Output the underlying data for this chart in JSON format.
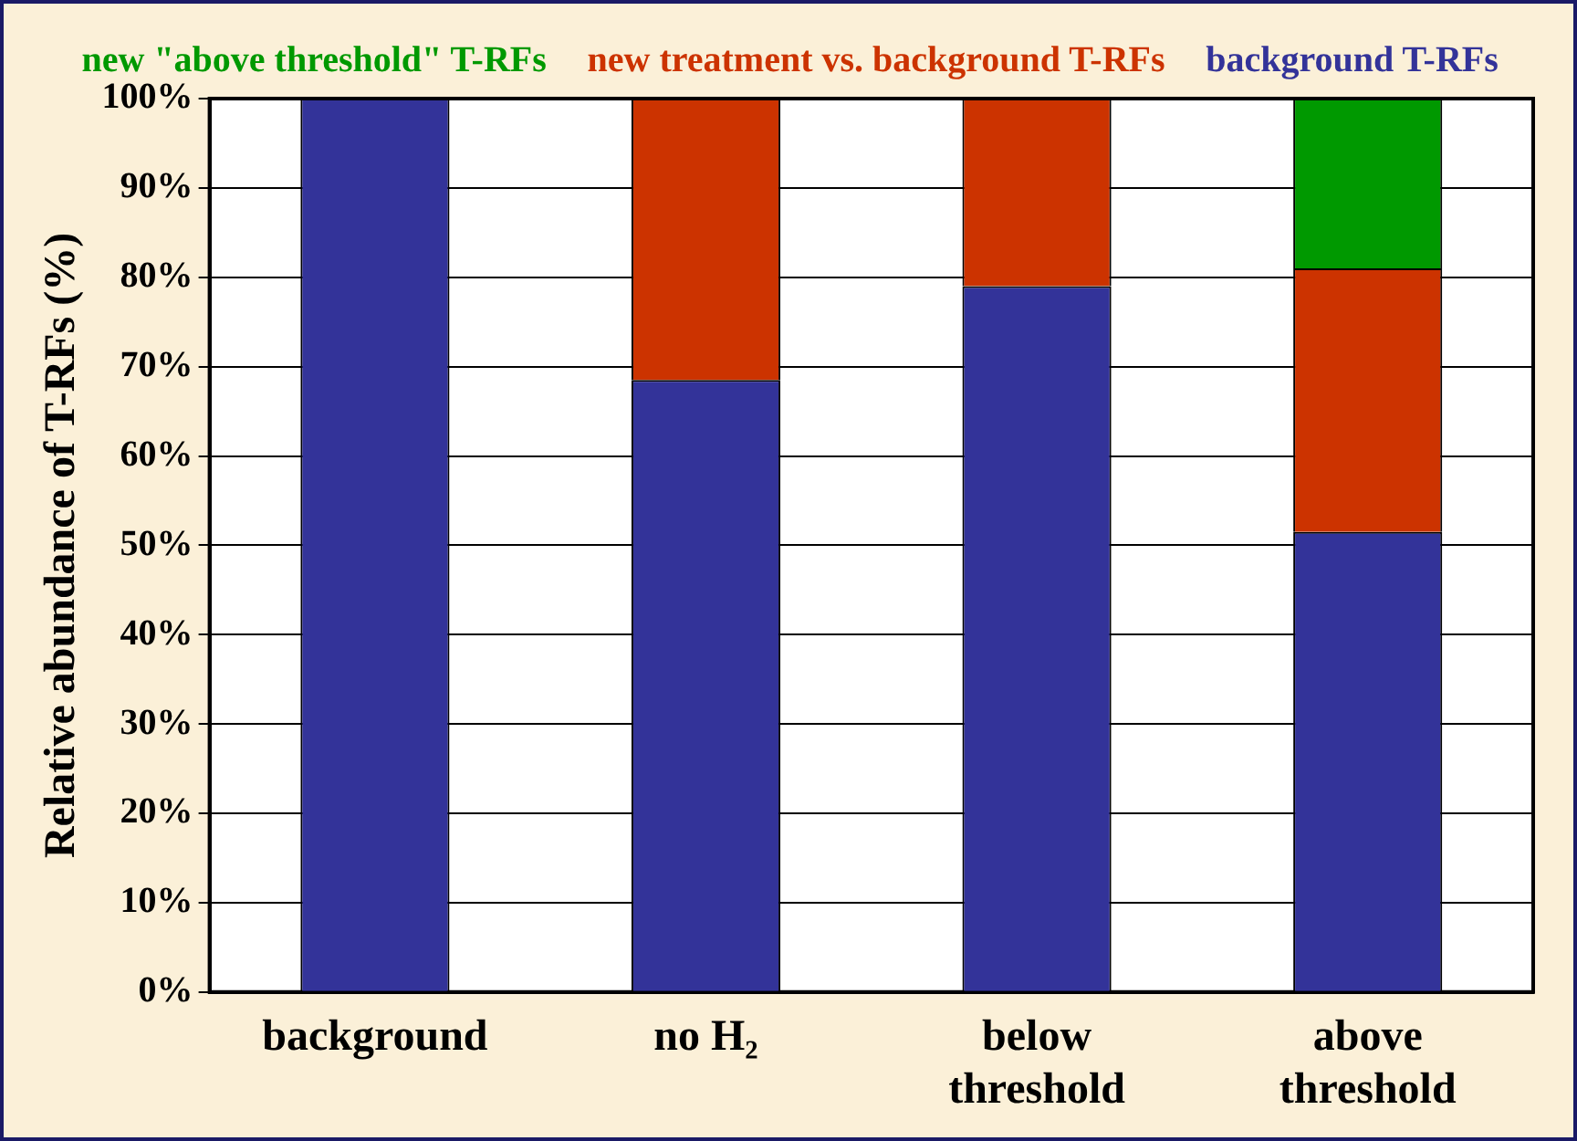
{
  "chart_data": {
    "type": "bar",
    "stacked": true,
    "ylabel": "Relative abundance of T-RFs (%)",
    "categories": [
      "background",
      "no H₂",
      "below\nthreshold",
      "above\nthreshold"
    ],
    "series": [
      {
        "name": "background T-RFs",
        "color": "#333399",
        "values": [
          100,
          68.5,
          79,
          51.5
        ]
      },
      {
        "name": "new treatment vs. background T-RFs",
        "color": "#cc3300",
        "values": [
          0,
          31.5,
          21,
          29.5
        ]
      },
      {
        "name": "new \"above threshold\" T-RFs",
        "color": "#009900",
        "values": [
          0,
          0,
          0,
          19
        ]
      }
    ],
    "ylim": [
      0,
      100
    ],
    "yticks": [
      {
        "value": 0,
        "label": "0%"
      },
      {
        "value": 10,
        "label": "10%"
      },
      {
        "value": 20,
        "label": "20%"
      },
      {
        "value": 30,
        "label": "30%"
      },
      {
        "value": 40,
        "label": "40%"
      },
      {
        "value": 50,
        "label": "50%"
      },
      {
        "value": 60,
        "label": "60%"
      },
      {
        "value": 70,
        "label": "70%"
      },
      {
        "value": 80,
        "label": "80%"
      },
      {
        "value": 90,
        "label": "90%"
      },
      {
        "value": 100,
        "label": "100%"
      }
    ],
    "grid": "y",
    "legend": "top"
  }
}
